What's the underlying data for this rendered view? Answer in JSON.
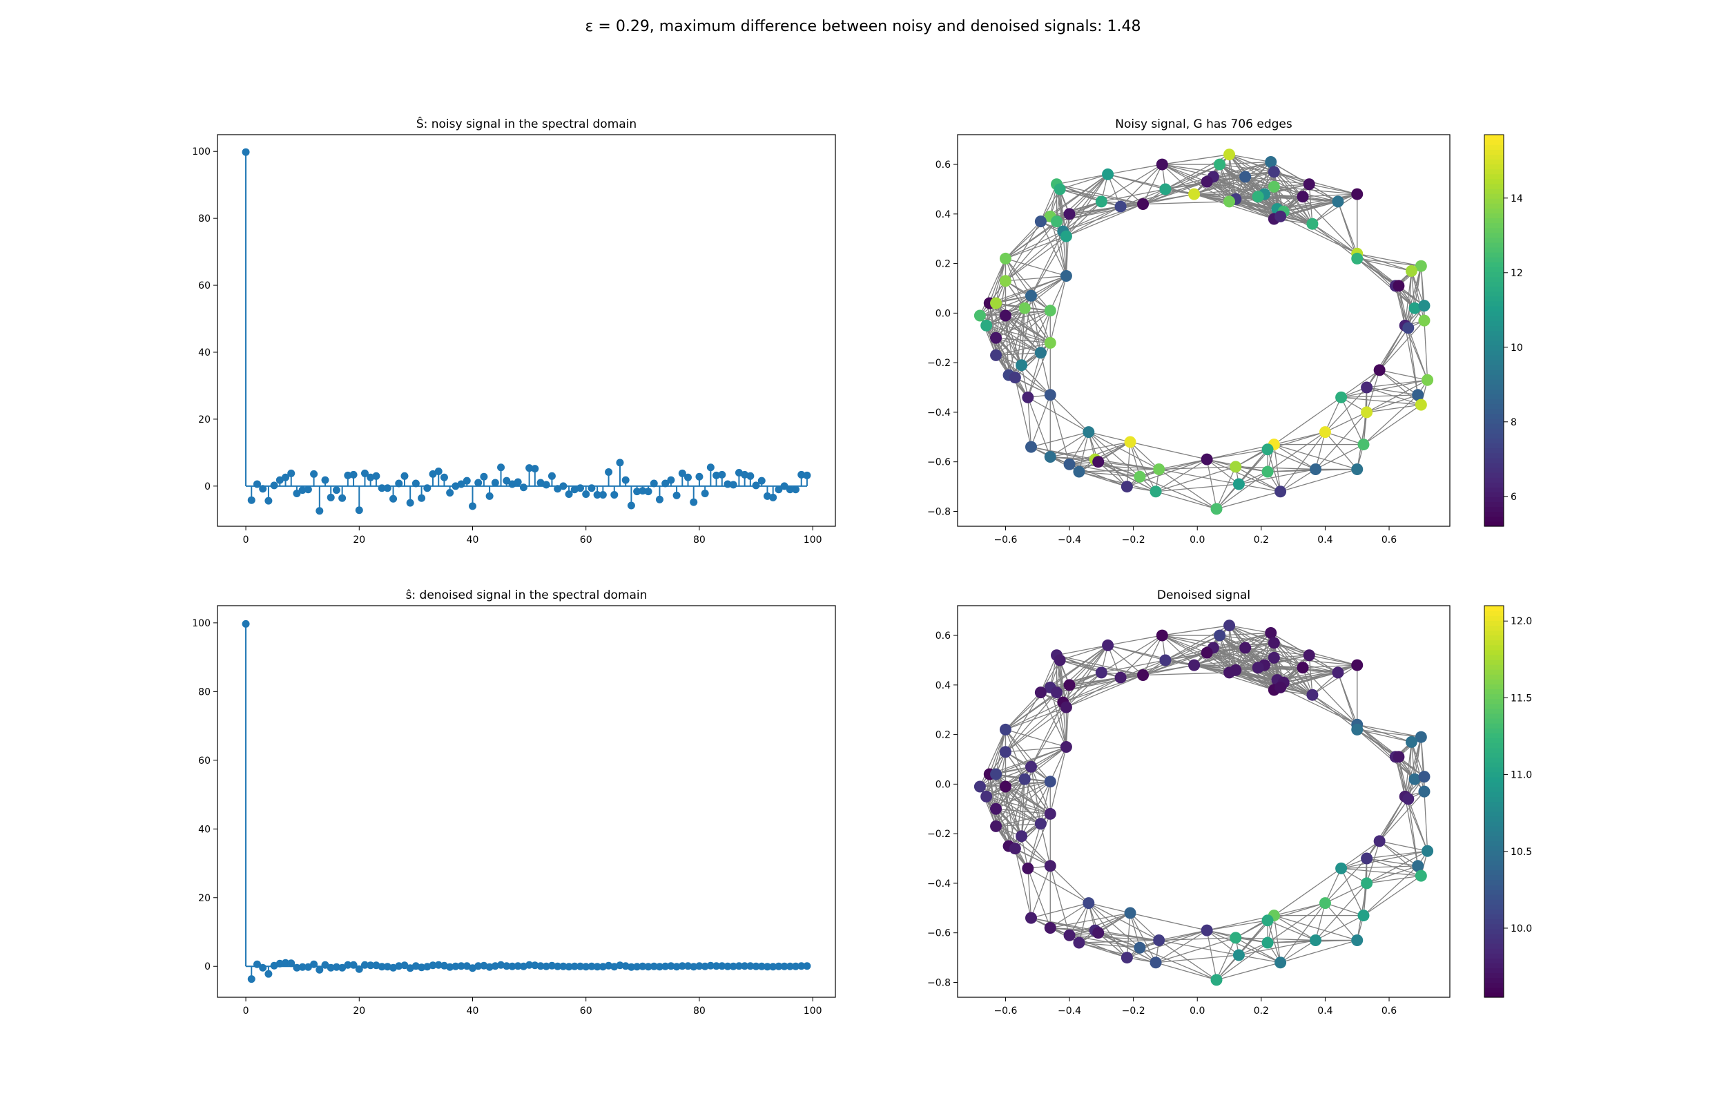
{
  "suptitle": "ε = 0.29, maximum difference between noisy and denoised signals: 1.48",
  "colors": {
    "stem": "#1f77b4",
    "edge": "#808080"
  },
  "chart_data": [
    {
      "type": "stem",
      "title": "Ŝ: noisy signal in the spectral domain",
      "xlim": [
        -5,
        104
      ],
      "ylim": [
        -12,
        105
      ],
      "xticks": [
        0,
        20,
        40,
        60,
        80,
        100
      ],
      "yticks": [
        0,
        20,
        40,
        60,
        80,
        100
      ],
      "x": [
        0,
        1,
        2,
        3,
        4,
        5,
        6,
        7,
        8,
        9,
        10,
        11,
        12,
        13,
        14,
        15,
        16,
        17,
        18,
        19,
        20,
        21,
        22,
        23,
        24,
        25,
        26,
        27,
        28,
        29,
        30,
        31,
        32,
        33,
        34,
        35,
        36,
        37,
        38,
        39,
        40,
        41,
        42,
        43,
        44,
        45,
        46,
        47,
        48,
        49,
        50,
        51,
        52,
        53,
        54,
        55,
        56,
        57,
        58,
        59,
        60,
        61,
        62,
        63,
        64,
        65,
        66,
        67,
        68,
        69,
        70,
        71,
        72,
        73,
        74,
        75,
        76,
        77,
        78,
        79,
        80,
        81,
        82,
        83,
        84,
        85,
        86,
        87,
        88,
        89,
        90,
        91,
        92,
        93,
        94,
        95,
        96,
        97,
        98,
        99
      ],
      "values": [
        99.8,
        -4.2,
        0.6,
        -0.8,
        -4.4,
        0.2,
        1.8,
        2.6,
        3.8,
        -2.2,
        -1.2,
        -1.0,
        3.6,
        -7.4,
        1.8,
        -3.4,
        -1.2,
        -3.6,
        3.2,
        3.4,
        -7.2,
        3.8,
        2.6,
        3.0,
        -0.6,
        -0.6,
        -3.8,
        0.8,
        3.0,
        -5.0,
        0.8,
        -3.6,
        -0.6,
        3.6,
        4.4,
        2.6,
        -2.0,
        0.0,
        0.6,
        1.6,
        -6.0,
        1.0,
        2.8,
        -3.0,
        1.0,
        5.6,
        1.6,
        0.6,
        1.2,
        -0.4,
        5.4,
        5.2,
        1.0,
        0.4,
        3.0,
        -0.8,
        0.0,
        -2.4,
        -1.0,
        -0.6,
        -2.4,
        -0.6,
        -2.6,
        -2.6,
        4.2,
        -2.6,
        7.0,
        1.8,
        -5.8,
        -1.6,
        -1.4,
        -1.6,
        0.8,
        -4.0,
        0.8,
        1.8,
        -2.8,
        3.8,
        2.6,
        -4.8,
        2.8,
        -2.2,
        5.6,
        3.2,
        3.4,
        0.6,
        0.4,
        4.0,
        3.4,
        3.0,
        0.2,
        1.6,
        -3.0,
        -3.4,
        -1.0,
        0.0,
        -1.0,
        -1.0,
        3.4,
        3.2
      ]
    },
    {
      "type": "graph",
      "title": "Noisy signal, G has 706 edges",
      "xlim": [
        -0.75,
        0.79
      ],
      "ylim": [
        -0.86,
        0.72
      ],
      "xticks": [
        -0.6,
        -0.4,
        -0.2,
        0.0,
        0.2,
        0.4,
        0.6
      ],
      "yticks": [
        -0.8,
        -0.6,
        -0.4,
        -0.2,
        0.0,
        0.2,
        0.4,
        0.6
      ],
      "colorbar": {
        "min": 5.2,
        "max": 15.7,
        "ticks": [
          6,
          8,
          10,
          12,
          14
        ]
      },
      "nodes": [
        [
          0.1,
          0.64,
          14.8
        ],
        [
          0.23,
          0.61,
          9.0
        ],
        [
          0.07,
          0.6,
          12.0
        ],
        [
          0.24,
          0.57,
          7.0
        ],
        [
          -0.11,
          0.6,
          5.6
        ],
        [
          -0.28,
          0.56,
          11.0
        ],
        [
          0.05,
          0.55,
          6.2
        ],
        [
          0.15,
          0.55,
          8.2
        ],
        [
          0.03,
          0.53,
          5.8
        ],
        [
          0.24,
          0.51,
          13.0
        ],
        [
          -0.44,
          0.52,
          12.4
        ],
        [
          0.35,
          0.52,
          5.6
        ],
        [
          -0.43,
          0.5,
          11.8
        ],
        [
          -0.1,
          0.5,
          11.4
        ],
        [
          0.21,
          0.48,
          10.4
        ],
        [
          0.33,
          0.47,
          5.6
        ],
        [
          -0.01,
          0.48,
          15.0
        ],
        [
          0.19,
          0.47,
          12.0
        ],
        [
          0.12,
          0.46,
          7.0
        ],
        [
          0.44,
          0.45,
          9.2
        ],
        [
          0.1,
          0.45,
          13.4
        ],
        [
          -0.3,
          0.45,
          11.6
        ],
        [
          -0.17,
          0.44,
          5.4
        ],
        [
          -0.24,
          0.43,
          7.4
        ],
        [
          0.25,
          0.42,
          10.8
        ],
        [
          0.5,
          0.48,
          5.4
        ],
        [
          0.27,
          0.41,
          12.4
        ],
        [
          -0.4,
          0.4,
          5.8
        ],
        [
          -0.46,
          0.39,
          13.4
        ],
        [
          -0.44,
          0.37,
          12.4
        ],
        [
          -0.49,
          0.37,
          8.0
        ],
        [
          0.24,
          0.38,
          5.8
        ],
        [
          0.26,
          0.39,
          6.4
        ],
        [
          0.36,
          0.36,
          12.0
        ],
        [
          -0.42,
          0.33,
          9.8
        ],
        [
          -0.41,
          0.31,
          11.2
        ],
        [
          0.5,
          0.24,
          14.6
        ],
        [
          0.5,
          0.22,
          12.0
        ],
        [
          -0.6,
          0.22,
          13.4
        ],
        [
          0.7,
          0.19,
          13.4
        ],
        [
          -0.41,
          0.15,
          8.6
        ],
        [
          0.67,
          0.17,
          14.2
        ],
        [
          -0.6,
          0.13,
          13.8
        ],
        [
          0.62,
          0.11,
          6.4
        ],
        [
          0.63,
          0.11,
          5.4
        ],
        [
          -0.52,
          0.07,
          8.6
        ],
        [
          -0.65,
          0.04,
          5.4
        ],
        [
          -0.63,
          0.04,
          14.2
        ],
        [
          -0.54,
          0.02,
          13.4
        ],
        [
          0.68,
          0.02,
          11.2
        ],
        [
          -0.46,
          0.01,
          13.0
        ],
        [
          0.71,
          0.03,
          10.4
        ],
        [
          -0.68,
          -0.01,
          12.6
        ],
        [
          -0.6,
          -0.01,
          5.6
        ],
        [
          0.71,
          -0.03,
          13.6
        ],
        [
          -0.66,
          -0.05,
          11.6
        ],
        [
          0.65,
          -0.05,
          6.2
        ],
        [
          0.66,
          -0.06,
          7.4
        ],
        [
          -0.63,
          -0.1,
          5.8
        ],
        [
          -0.46,
          -0.12,
          13.6
        ],
        [
          -0.63,
          -0.17,
          7.0
        ],
        [
          -0.49,
          -0.16,
          9.4
        ],
        [
          -0.55,
          -0.21,
          9.8
        ],
        [
          0.57,
          -0.23,
          5.4
        ],
        [
          -0.59,
          -0.25,
          7.4
        ],
        [
          -0.57,
          -0.26,
          7.0
        ],
        [
          0.72,
          -0.27,
          13.6
        ],
        [
          0.53,
          -0.3,
          6.4
        ],
        [
          0.69,
          -0.33,
          8.4
        ],
        [
          -0.46,
          -0.33,
          8.0
        ],
        [
          -0.53,
          -0.34,
          6.2
        ],
        [
          0.45,
          -0.34,
          11.8
        ],
        [
          0.7,
          -0.37,
          14.8
        ],
        [
          0.53,
          -0.4,
          15.0
        ],
        [
          -0.34,
          -0.48,
          9.6
        ],
        [
          0.4,
          -0.48,
          15.4
        ],
        [
          -0.52,
          -0.54,
          8.2
        ],
        [
          -0.21,
          -0.52,
          15.4
        ],
        [
          0.24,
          -0.53,
          15.6
        ],
        [
          0.52,
          -0.53,
          12.6
        ],
        [
          0.22,
          -0.55,
          11.6
        ],
        [
          -0.46,
          -0.58,
          9.0
        ],
        [
          -0.32,
          -0.59,
          14.4
        ],
        [
          -0.31,
          -0.6,
          5.6
        ],
        [
          0.03,
          -0.59,
          5.6
        ],
        [
          -0.4,
          -0.61,
          8.2
        ],
        [
          -0.37,
          -0.64,
          8.6
        ],
        [
          0.12,
          -0.62,
          14.2
        ],
        [
          -0.12,
          -0.63,
          13.4
        ],
        [
          0.37,
          -0.63,
          8.6
        ],
        [
          0.5,
          -0.63,
          9.2
        ],
        [
          0.22,
          -0.64,
          12.4
        ],
        [
          -0.18,
          -0.66,
          13.2
        ],
        [
          0.13,
          -0.69,
          11.0
        ],
        [
          -0.22,
          -0.7,
          6.8
        ],
        [
          0.26,
          -0.72,
          7.0
        ],
        [
          -0.13,
          -0.72,
          11.6
        ],
        [
          0.06,
          -0.79,
          12.6
        ]
      ]
    },
    {
      "type": "stem",
      "title": "ŝ: denoised signal in the spectral domain",
      "xlim": [
        -5,
        104
      ],
      "ylim": [
        -9,
        105
      ],
      "xticks": [
        0,
        20,
        40,
        60,
        80,
        100
      ],
      "yticks": [
        0,
        20,
        40,
        60,
        80,
        100
      ],
      "x": [
        0,
        1,
        2,
        3,
        4,
        5,
        6,
        7,
        8,
        9,
        10,
        11,
        12,
        13,
        14,
        15,
        16,
        17,
        18,
        19,
        20,
        21,
        22,
        23,
        24,
        25,
        26,
        27,
        28,
        29,
        30,
        31,
        32,
        33,
        34,
        35,
        36,
        37,
        38,
        39,
        40,
        41,
        42,
        43,
        44,
        45,
        46,
        47,
        48,
        49,
        50,
        51,
        52,
        53,
        54,
        55,
        56,
        57,
        58,
        59,
        60,
        61,
        62,
        63,
        64,
        65,
        66,
        67,
        68,
        69,
        70,
        71,
        72,
        73,
        74,
        75,
        76,
        77,
        78,
        79,
        80,
        81,
        82,
        83,
        84,
        85,
        86,
        87,
        88,
        89,
        90,
        91,
        92,
        93,
        94,
        95,
        96,
        97,
        98,
        99
      ],
      "values": [
        99.7,
        -3.7,
        0.6,
        -0.4,
        -2.2,
        0.2,
        0.8,
        1.0,
        0.9,
        -0.4,
        -0.2,
        -0.2,
        0.6,
        -1.0,
        0.4,
        -0.4,
        -0.2,
        -0.4,
        0.4,
        0.4,
        -0.8,
        0.4,
        0.3,
        0.3,
        -0.1,
        -0.1,
        -0.4,
        0.1,
        0.3,
        -0.5,
        0.1,
        -0.3,
        -0.1,
        0.3,
        0.4,
        0.2,
        -0.2,
        0.0,
        0.1,
        0.1,
        -0.5,
        0.1,
        0.2,
        -0.2,
        0.1,
        0.4,
        0.1,
        0.0,
        0.1,
        0.0,
        0.4,
        0.3,
        0.1,
        0.0,
        0.2,
        0.0,
        0.0,
        -0.1,
        0.0,
        0.0,
        -0.1,
        0.0,
        -0.1,
        -0.1,
        0.2,
        -0.1,
        0.3,
        0.1,
        -0.2,
        -0.1,
        0.0,
        -0.1,
        0.0,
        -0.1,
        0.0,
        0.1,
        -0.1,
        0.1,
        0.1,
        -0.1,
        0.1,
        0.0,
        0.2,
        0.1,
        0.1,
        0.0,
        0.0,
        0.1,
        0.1,
        0.1,
        0.0,
        0.0,
        -0.1,
        -0.1,
        0.0,
        0.0,
        0.0,
        0.0,
        0.1,
        0.1
      ]
    },
    {
      "type": "graph",
      "title": "Denoised signal",
      "xlim": [
        -0.75,
        0.79
      ],
      "ylim": [
        -0.86,
        0.72
      ],
      "xticks": [
        -0.6,
        -0.4,
        -0.2,
        0.0,
        0.2,
        0.4,
        0.6
      ],
      "yticks": [
        -0.8,
        -0.6,
        -0.4,
        -0.2,
        0.0,
        0.2,
        0.4,
        0.6
      ],
      "colorbar": {
        "min": 9.55,
        "max": 12.1,
        "ticks": [
          10.0,
          10.5,
          11.0,
          11.5,
          12.0
        ]
      },
      "values": [
        9.95,
        9.65,
        10.05,
        9.7,
        9.6,
        9.8,
        9.75,
        9.7,
        9.6,
        9.75,
        9.8,
        9.7,
        9.75,
        9.95,
        9.7,
        9.6,
        9.75,
        9.75,
        9.7,
        9.8,
        9.7,
        9.85,
        9.6,
        9.75,
        9.75,
        9.6,
        9.7,
        9.6,
        9.85,
        9.8,
        9.7,
        9.6,
        9.65,
        9.85,
        9.6,
        9.7,
        10.35,
        10.5,
        10.05,
        10.4,
        9.75,
        10.5,
        10.0,
        9.8,
        9.7,
        9.85,
        9.6,
        10.05,
        10.0,
        10.45,
        10.15,
        10.25,
        9.95,
        9.6,
        10.4,
        9.9,
        9.75,
        9.8,
        9.7,
        9.8,
        9.7,
        9.9,
        9.85,
        9.85,
        9.65,
        9.75,
        10.65,
        9.95,
        10.45,
        9.75,
        9.65,
        10.85,
        11.2,
        11.15,
        10.1,
        11.35,
        9.75,
        10.35,
        11.5,
        11.0,
        11.1,
        9.7,
        9.85,
        9.7,
        9.95,
        9.75,
        9.8,
        11.15,
        10.0,
        10.85,
        10.7,
        11.05,
        10.3,
        10.8,
        9.9,
        10.6,
        10.2,
        11.1
      ]
    }
  ]
}
